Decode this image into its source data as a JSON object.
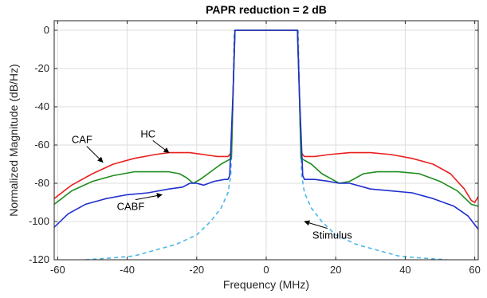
{
  "chart_data": {
    "type": "line",
    "title": "PAPR reduction = 2 dB",
    "xlabel": "Frequency (MHz)",
    "ylabel": "Normalized Magnitude (dB/Hz)",
    "xlim": [
      -61,
      61
    ],
    "ylim": [
      -120,
      5
    ],
    "grid": true,
    "xticks": [
      -60,
      -40,
      -20,
      0,
      20,
      40,
      60
    ],
    "yticks": [
      0,
      -20,
      -40,
      -60,
      -80,
      -100,
      -120
    ],
    "colors": {
      "HC": "#e8201e",
      "CAF": "#1e8c1e",
      "CABF": "#1f2fcf",
      "Stimulus": "#49b7e8"
    },
    "series": [
      {
        "name": "HC",
        "style": "solid",
        "points": [
          [
            -61,
            -88
          ],
          [
            -56,
            -81
          ],
          [
            -50,
            -75
          ],
          [
            -44,
            -70
          ],
          [
            -38,
            -67
          ],
          [
            -32,
            -65
          ],
          [
            -28,
            -64
          ],
          [
            -22,
            -64
          ],
          [
            -18,
            -65
          ],
          [
            -14,
            -66
          ],
          [
            -11,
            -66
          ],
          [
            -10,
            -64
          ],
          [
            -9.5,
            -30
          ],
          [
            -9,
            0
          ],
          [
            0,
            0
          ],
          [
            9,
            0
          ],
          [
            9.5,
            -30
          ],
          [
            10,
            -64
          ],
          [
            11,
            -66
          ],
          [
            14,
            -66
          ],
          [
            18,
            -65
          ],
          [
            24,
            -64
          ],
          [
            30,
            -64
          ],
          [
            36,
            -65
          ],
          [
            42,
            -67
          ],
          [
            48,
            -70
          ],
          [
            53,
            -75
          ],
          [
            57,
            -83
          ],
          [
            59,
            -89
          ],
          [
            60,
            -90
          ],
          [
            61,
            -87
          ]
        ]
      },
      {
        "name": "CAF",
        "style": "solid",
        "points": [
          [
            -61,
            -91
          ],
          [
            -56,
            -84
          ],
          [
            -50,
            -79
          ],
          [
            -44,
            -76
          ],
          [
            -38,
            -74
          ],
          [
            -32,
            -74
          ],
          [
            -28,
            -74
          ],
          [
            -25,
            -75
          ],
          [
            -23,
            -77
          ],
          [
            -21,
            -80
          ],
          [
            -19,
            -78
          ],
          [
            -16,
            -74
          ],
          [
            -13,
            -70
          ],
          [
            -11,
            -68
          ],
          [
            -10,
            -67
          ],
          [
            -9.5,
            -30
          ],
          [
            -9,
            0
          ],
          [
            0,
            0
          ],
          [
            9,
            0
          ],
          [
            9.5,
            -30
          ],
          [
            10,
            -67
          ],
          [
            11,
            -68
          ],
          [
            13,
            -70
          ],
          [
            16,
            -75
          ],
          [
            19,
            -78
          ],
          [
            21,
            -80
          ],
          [
            24,
            -79
          ],
          [
            28,
            -75
          ],
          [
            32,
            -74
          ],
          [
            38,
            -74
          ],
          [
            44,
            -75
          ],
          [
            50,
            -79
          ],
          [
            55,
            -84
          ],
          [
            59,
            -91
          ],
          [
            61,
            -92
          ]
        ]
      },
      {
        "name": "CABF",
        "style": "solid",
        "points": [
          [
            -61,
            -103
          ],
          [
            -57,
            -96
          ],
          [
            -52,
            -91
          ],
          [
            -46,
            -88
          ],
          [
            -40,
            -86
          ],
          [
            -34,
            -85
          ],
          [
            -28,
            -83
          ],
          [
            -24,
            -82
          ],
          [
            -22,
            -80
          ],
          [
            -20,
            -80
          ],
          [
            -18,
            -81
          ],
          [
            -15,
            -79
          ],
          [
            -12,
            -78
          ],
          [
            -11,
            -78
          ],
          [
            -10.5,
            -76
          ],
          [
            -9.5,
            -30
          ],
          [
            -9,
            0
          ],
          [
            0,
            0
          ],
          [
            9,
            0
          ],
          [
            9.5,
            -30
          ],
          [
            10.5,
            -76
          ],
          [
            11,
            -78
          ],
          [
            14,
            -78
          ],
          [
            18,
            -79
          ],
          [
            21,
            -80
          ],
          [
            24,
            -80
          ],
          [
            30,
            -83
          ],
          [
            36,
            -84
          ],
          [
            42,
            -85
          ],
          [
            48,
            -88
          ],
          [
            54,
            -92
          ],
          [
            58,
            -97
          ],
          [
            61,
            -104
          ]
        ]
      },
      {
        "name": "Stimulus",
        "style": "dashed",
        "points": [
          [
            -52,
            -120
          ],
          [
            -44,
            -119
          ],
          [
            -38,
            -118
          ],
          [
            -32,
            -115
          ],
          [
            -26,
            -112
          ],
          [
            -20,
            -107
          ],
          [
            -16,
            -100
          ],
          [
            -13,
            -93
          ],
          [
            -11,
            -85
          ],
          [
            -10.2,
            -76
          ],
          [
            -9.6,
            -40
          ],
          [
            -9.2,
            0
          ],
          [
            0,
            0
          ],
          [
            9.2,
            0
          ],
          [
            9.6,
            -40
          ],
          [
            10.2,
            -76
          ],
          [
            11,
            -85
          ],
          [
            13,
            -93
          ],
          [
            16,
            -100
          ],
          [
            20,
            -107
          ],
          [
            26,
            -112
          ],
          [
            32,
            -115
          ],
          [
            38,
            -118
          ],
          [
            44,
            -119
          ],
          [
            52,
            -120
          ]
        ]
      }
    ],
    "annotations": [
      {
        "text": "HC",
        "x": -34,
        "y": -56,
        "arrow_to": [
          -28,
          -64
        ]
      },
      {
        "text": "CAF",
        "x": -53,
        "y": -59,
        "arrow_to": [
          -47,
          -69
        ]
      },
      {
        "text": "CABF",
        "x": -39,
        "y": -94,
        "arrow_to": [
          -30,
          -86
        ]
      },
      {
        "text": "Stimulus",
        "x": 19,
        "y": -109,
        "arrow_to": [
          11,
          -100
        ]
      }
    ]
  }
}
